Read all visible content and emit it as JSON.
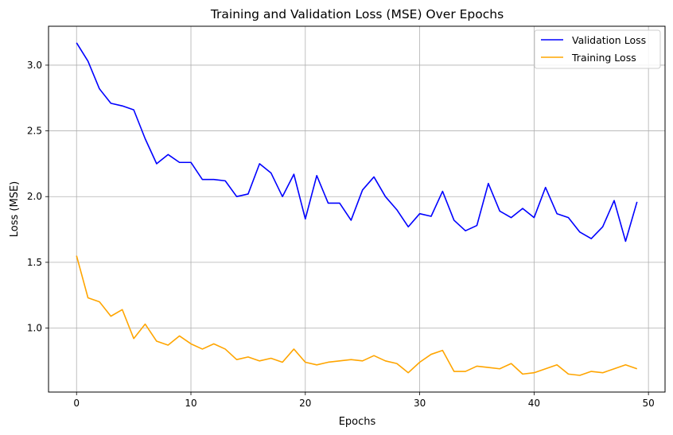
{
  "chart_data": {
    "type": "line",
    "title": "Training and Validation Loss (MSE) Over Epochs",
    "xlabel": "Epochs",
    "ylabel": "Loss (MSE)",
    "xlim": [
      -2.45,
      51.45
    ],
    "ylim": [
      0.513,
      3.296
    ],
    "xticks": [
      0,
      10,
      20,
      30,
      40,
      50
    ],
    "yticks": [
      1.0,
      1.5,
      2.0,
      2.5,
      3.0
    ],
    "xtick_labels": [
      "0",
      "10",
      "20",
      "30",
      "40",
      "50"
    ],
    "ytick_labels": [
      "1.0",
      "1.5",
      "2.0",
      "2.5",
      "3.0"
    ],
    "grid": true,
    "legend_position": "top-right",
    "x": [
      0,
      1,
      2,
      3,
      4,
      5,
      6,
      7,
      8,
      9,
      10,
      11,
      12,
      13,
      14,
      15,
      16,
      17,
      18,
      19,
      20,
      21,
      22,
      23,
      24,
      25,
      26,
      27,
      28,
      29,
      30,
      31,
      32,
      33,
      34,
      35,
      36,
      37,
      38,
      39,
      40,
      41,
      42,
      43,
      44,
      45,
      46,
      47,
      48,
      49
    ],
    "series": [
      {
        "name": "Validation Loss",
        "color": "#0000ff",
        "values": [
          3.17,
          3.03,
          2.82,
          2.71,
          2.69,
          2.66,
          2.44,
          2.25,
          2.32,
          2.26,
          2.26,
          2.13,
          2.13,
          2.12,
          2.0,
          2.02,
          2.25,
          2.18,
          2.0,
          2.17,
          1.83,
          2.16,
          1.95,
          1.95,
          1.82,
          2.05,
          2.15,
          2.0,
          1.9,
          1.77,
          1.87,
          1.85,
          2.04,
          1.82,
          1.74,
          1.78,
          2.1,
          1.89,
          1.84,
          1.91,
          1.84,
          2.07,
          1.87,
          1.84,
          1.73,
          1.68,
          1.77,
          1.97,
          1.66,
          1.96
        ]
      },
      {
        "name": "Training Loss",
        "color": "#ffa500",
        "values": [
          1.55,
          1.23,
          1.2,
          1.09,
          1.14,
          0.92,
          1.03,
          0.9,
          0.87,
          0.94,
          0.88,
          0.84,
          0.88,
          0.84,
          0.76,
          0.78,
          0.75,
          0.77,
          0.74,
          0.84,
          0.74,
          0.72,
          0.74,
          0.75,
          0.76,
          0.75,
          0.79,
          0.75,
          0.73,
          0.66,
          0.74,
          0.8,
          0.83,
          0.67,
          0.67,
          0.71,
          0.7,
          0.69,
          0.73,
          0.65,
          0.66,
          0.69,
          0.72,
          0.65,
          0.64,
          0.67,
          0.66,
          0.69,
          0.72,
          0.69
        ]
      }
    ]
  }
}
